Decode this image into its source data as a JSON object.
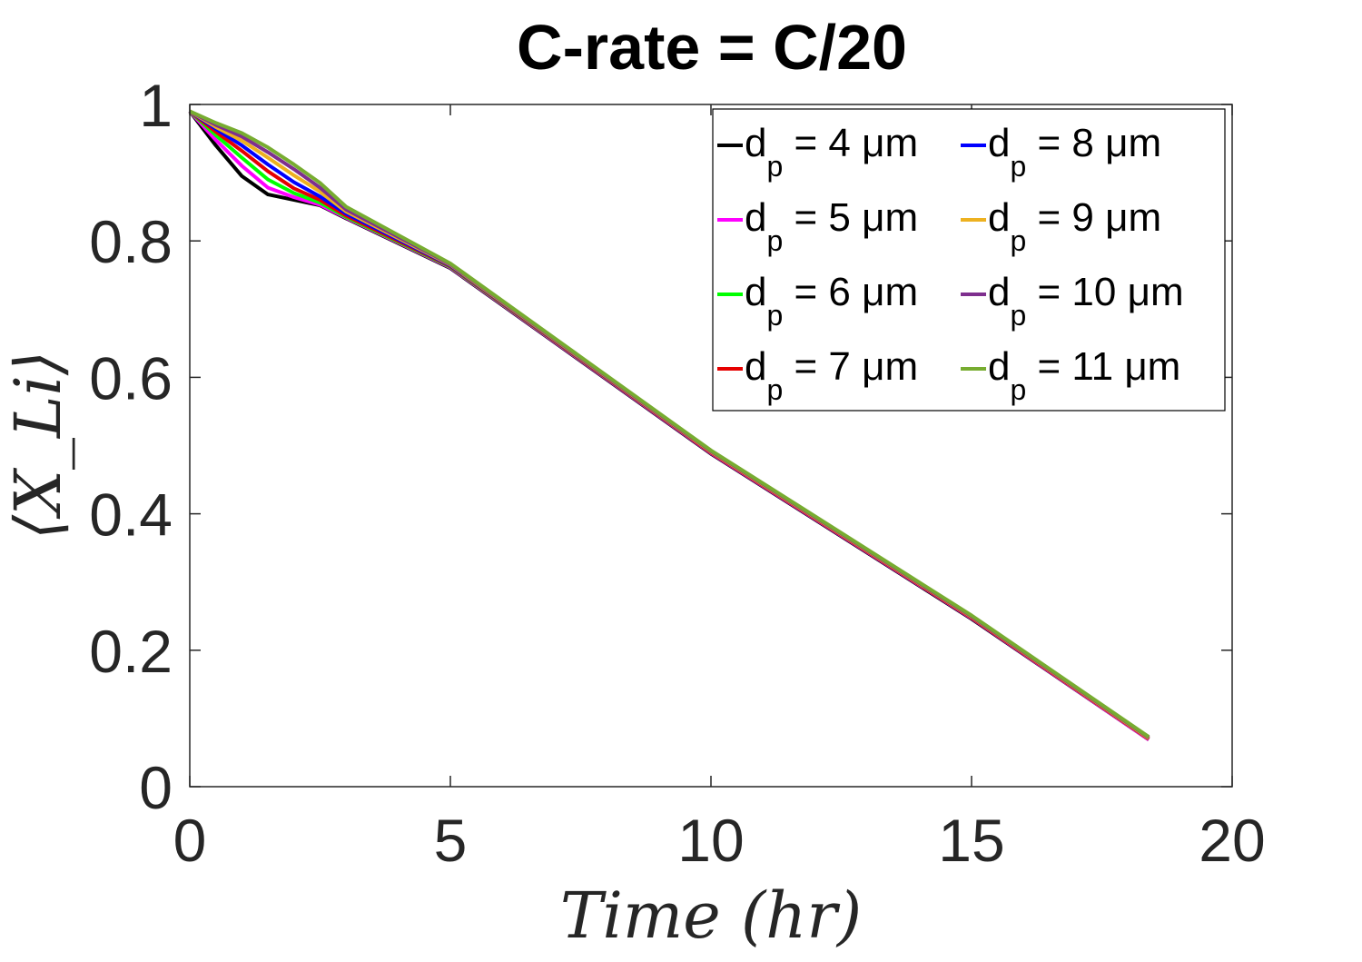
{
  "chart_data": {
    "type": "line",
    "title": "C-rate = C/20",
    "xlabel": "Time (hr)",
    "ylabel": "⟨X_Li⟩",
    "xlim": [
      0,
      20
    ],
    "ylim": [
      0,
      1
    ],
    "xticks": [
      "0",
      "5",
      "10",
      "15",
      "20"
    ],
    "yticks": [
      "0",
      "0.2",
      "0.4",
      "0.6",
      "0.8",
      "1"
    ],
    "grid": false,
    "legend_position": "top-right",
    "legend_columns": 2,
    "series": [
      {
        "name": "d_p = 4 μm",
        "label_main": "d",
        "label_sub": "p",
        "label_rest": " = 4 μm",
        "color": "#000000",
        "points": [
          [
            0,
            0.99
          ],
          [
            0.5,
            0.94
          ],
          [
            1.0,
            0.895
          ],
          [
            1.5,
            0.868
          ],
          [
            2.0,
            0.86
          ],
          [
            2.5,
            0.852
          ],
          [
            3.0,
            0.833
          ],
          [
            5,
            0.76
          ],
          [
            10,
            0.488
          ],
          [
            15,
            0.246
          ],
          [
            18.4,
            0.069
          ]
        ]
      },
      {
        "name": "d_p = 5 μm",
        "label_main": "d",
        "label_sub": "p",
        "label_rest": " = 5 μm",
        "color": "#ff00ff",
        "points": [
          [
            0,
            0.99
          ],
          [
            0.5,
            0.948
          ],
          [
            1.0,
            0.91
          ],
          [
            1.5,
            0.878
          ],
          [
            2.0,
            0.864
          ],
          [
            2.5,
            0.853
          ],
          [
            3.0,
            0.834
          ],
          [
            5,
            0.761
          ],
          [
            10,
            0.489
          ],
          [
            15,
            0.247
          ],
          [
            18.4,
            0.069
          ]
        ]
      },
      {
        "name": "d_p = 6 μm",
        "label_main": "d",
        "label_sub": "p",
        "label_rest": " = 6 μm",
        "color": "#00ff00",
        "points": [
          [
            0,
            0.99
          ],
          [
            0.5,
            0.955
          ],
          [
            1.0,
            0.922
          ],
          [
            1.5,
            0.89
          ],
          [
            2.0,
            0.87
          ],
          [
            2.5,
            0.856
          ],
          [
            3.0,
            0.835
          ],
          [
            5,
            0.762
          ],
          [
            10,
            0.49
          ],
          [
            15,
            0.248
          ],
          [
            18.4,
            0.07
          ]
        ]
      },
      {
        "name": "d_p = 7 μm",
        "label_main": "d",
        "label_sub": "p",
        "label_rest": " = 7 μm",
        "color": "#e60000",
        "points": [
          [
            0,
            0.99
          ],
          [
            0.5,
            0.96
          ],
          [
            1.0,
            0.932
          ],
          [
            1.5,
            0.902
          ],
          [
            2.0,
            0.877
          ],
          [
            2.5,
            0.86
          ],
          [
            3.0,
            0.837
          ],
          [
            5,
            0.763
          ],
          [
            10,
            0.49
          ],
          [
            15,
            0.248
          ],
          [
            18.4,
            0.07
          ]
        ]
      },
      {
        "name": "d_p = 8 μm",
        "label_main": "d",
        "label_sub": "p",
        "label_rest": " = 8 μm",
        "color": "#0000ff",
        "points": [
          [
            0,
            0.99
          ],
          [
            0.5,
            0.964
          ],
          [
            1.0,
            0.94
          ],
          [
            1.5,
            0.912
          ],
          [
            2.0,
            0.886
          ],
          [
            2.5,
            0.865
          ],
          [
            3.0,
            0.84
          ],
          [
            5,
            0.764
          ],
          [
            10,
            0.491
          ],
          [
            15,
            0.249
          ],
          [
            18.4,
            0.071
          ]
        ]
      },
      {
        "name": "d_p = 9 μm",
        "label_main": "d",
        "label_sub": "p",
        "label_rest": " = 9 μm",
        "color": "#edb120",
        "points": [
          [
            0,
            0.99
          ],
          [
            0.5,
            0.967
          ],
          [
            1.0,
            0.947
          ],
          [
            1.5,
            0.922
          ],
          [
            2.0,
            0.896
          ],
          [
            2.5,
            0.872
          ],
          [
            3.0,
            0.843
          ],
          [
            5,
            0.765
          ],
          [
            10,
            0.491
          ],
          [
            15,
            0.249
          ],
          [
            18.4,
            0.071
          ]
        ]
      },
      {
        "name": "d_p = 10 μm",
        "label_main": "d",
        "label_sub": "p",
        "label_rest": " = 10 μm",
        "color": "#7e2f8e",
        "points": [
          [
            0,
            0.99
          ],
          [
            0.5,
            0.97
          ],
          [
            1.0,
            0.953
          ],
          [
            1.5,
            0.93
          ],
          [
            2.0,
            0.905
          ],
          [
            2.5,
            0.878
          ],
          [
            3.0,
            0.846
          ],
          [
            5,
            0.766
          ],
          [
            10,
            0.492
          ],
          [
            15,
            0.25
          ],
          [
            18.4,
            0.072
          ]
        ]
      },
      {
        "name": "d_p = 11 μm",
        "label_main": "d",
        "label_sub": "p",
        "label_rest": " = 11 μm",
        "color": "#77ac30",
        "points": [
          [
            0,
            0.99
          ],
          [
            0.5,
            0.973
          ],
          [
            1.0,
            0.958
          ],
          [
            1.5,
            0.937
          ],
          [
            2.0,
            0.912
          ],
          [
            2.5,
            0.885
          ],
          [
            3.0,
            0.85
          ],
          [
            5,
            0.767
          ],
          [
            10,
            0.493
          ],
          [
            15,
            0.251
          ],
          [
            18.4,
            0.073
          ]
        ]
      }
    ]
  }
}
